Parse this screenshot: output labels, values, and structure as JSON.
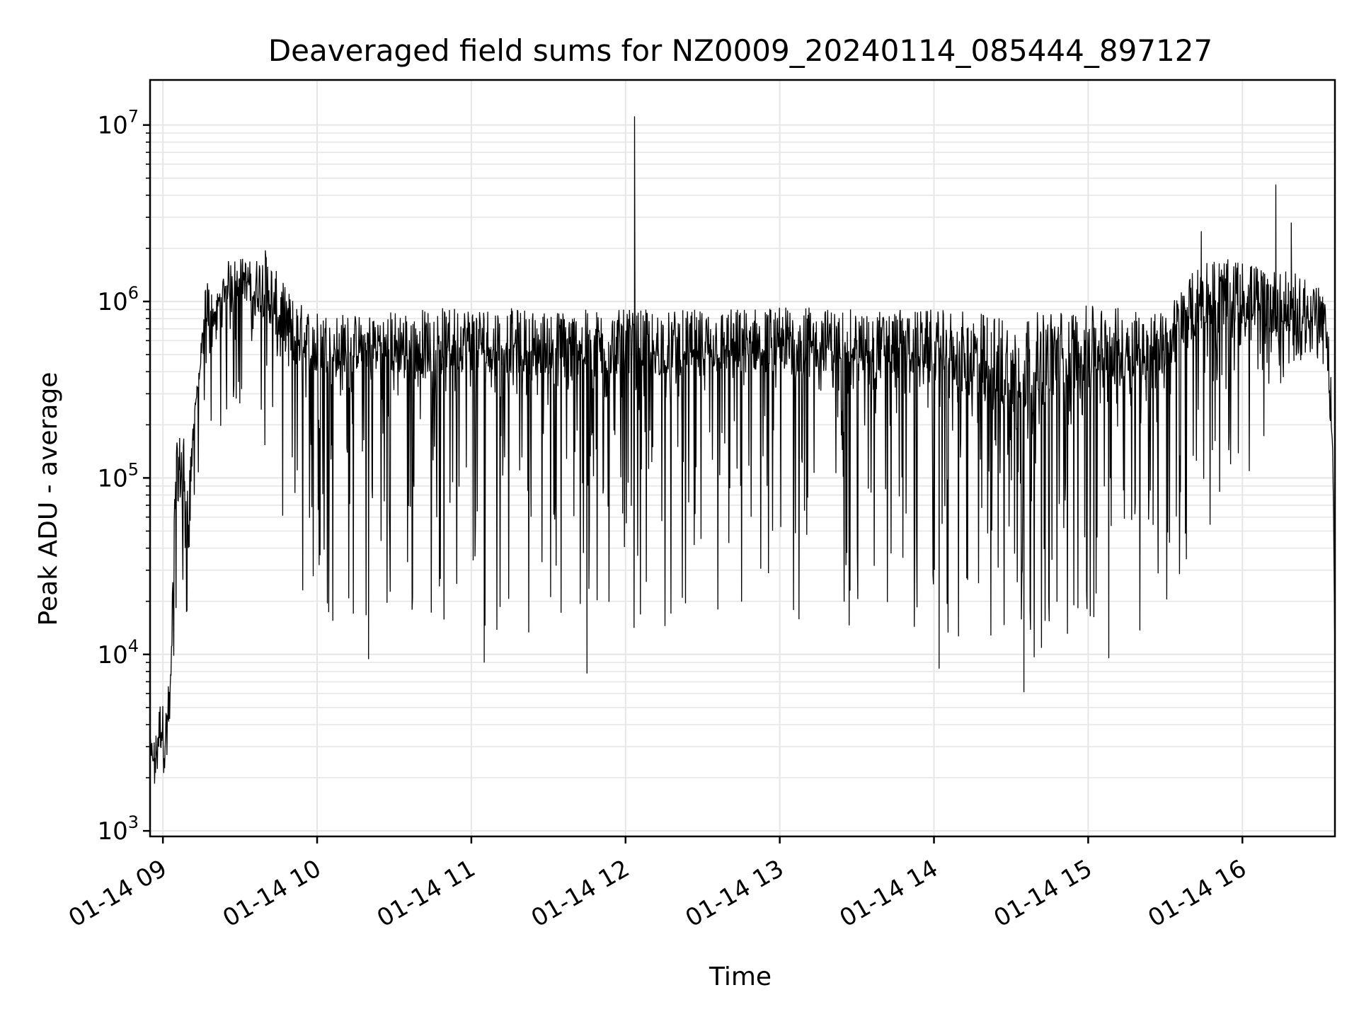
{
  "chart_data": {
    "type": "line",
    "title": "Deaveraged field sums for NZ0009_20240114_085444_897127",
    "xlabel": "Time",
    "ylabel": "Peak ADU - average",
    "yscale": "log",
    "ylim": [
      930,
      18000000
    ],
    "xlim": [
      "2024-01-14 08:55:00",
      "2024-01-14 16:36:00"
    ],
    "grid": true,
    "line_color": "#000000",
    "grid_color": "#e6e6e6",
    "y_ticks": [
      {
        "base": "10",
        "exp": "3",
        "value": 1000
      },
      {
        "base": "10",
        "exp": "4",
        "value": 10000
      },
      {
        "base": "10",
        "exp": "5",
        "value": 100000
      },
      {
        "base": "10",
        "exp": "6",
        "value": 1000000
      },
      {
        "base": "10",
        "exp": "7",
        "value": 10000000
      }
    ],
    "x_ticks": [
      {
        "label": "01-14 09",
        "time": "2024-01-14 09:00:00"
      },
      {
        "label": "01-14 10",
        "time": "2024-01-14 10:00:00"
      },
      {
        "label": "01-14 11",
        "time": "2024-01-14 11:00:00"
      },
      {
        "label": "01-14 12",
        "time": "2024-01-14 12:00:00"
      },
      {
        "label": "01-14 13",
        "time": "2024-01-14 13:00:00"
      },
      {
        "label": "01-14 14",
        "time": "2024-01-14 14:00:00"
      },
      {
        "label": "01-14 15",
        "time": "2024-01-14 15:00:00"
      },
      {
        "label": "01-14 16",
        "time": "2024-01-14 16:00:00"
      }
    ],
    "series": [
      {
        "x": [
          "2024-01-14 08:55:00",
          "2024-01-14 08:57:00",
          "2024-01-14 08:59:00",
          "2024-01-14 09:01:00",
          "2024-01-14 09:03:00",
          "2024-01-14 09:05:00",
          "2024-01-14 09:08:00",
          "2024-01-14 09:10:00",
          "2024-01-14 09:12:00",
          "2024-01-14 09:14:00",
          "2024-01-14 09:17:00",
          "2024-01-14 09:20:00",
          "2024-01-14 09:25:00",
          "2024-01-14 09:30:00",
          "2024-01-14 09:35:00",
          "2024-01-14 09:40:00",
          "2024-01-14 09:45:00",
          "2024-01-14 09:50:00",
          "2024-01-14 09:55:00",
          "2024-01-14 10:00:00",
          "2024-01-14 10:15:00",
          "2024-01-14 10:30:00",
          "2024-01-14 11:00:00",
          "2024-01-14 11:30:00",
          "2024-01-14 12:00:00",
          "2024-01-14 12:30:00",
          "2024-01-14 13:00:00",
          "2024-01-14 13:30:00",
          "2024-01-14 14:00:00",
          "2024-01-14 14:30:00",
          "2024-01-14 15:00:00",
          "2024-01-14 15:30:00",
          "2024-01-14 15:45:00",
          "2024-01-14 16:00:00",
          "2024-01-14 16:15:00",
          "2024-01-14 16:25:00",
          "2024-01-14 16:30:00",
          "2024-01-14 16:33:00",
          "2024-01-14 16:35:00",
          "2024-01-14 16:36:00"
        ],
        "upper": [
          3300,
          3400,
          5800,
          4800,
          9000,
          150000,
          220000,
          90000,
          250000,
          400000,
          1500000,
          1000000,
          1700000,
          1800000,
          1700000,
          2000000,
          1400000,
          1100000,
          950000,
          900000,
          850000,
          900000,
          950000,
          900000,
          900000,
          900000,
          950000,
          900000,
          900000,
          850000,
          950000,
          900000,
          1800000,
          1700000,
          1500000,
          1400000,
          1200000,
          900000,
          300000,
          10000
        ],
        "mid": [
          2500,
          2200,
          2800,
          2500,
          5500,
          80000,
          60000,
          40000,
          200000,
          350000,
          600000,
          700000,
          1000000,
          1100000,
          900000,
          800000,
          600000,
          450000,
          400000,
          380000,
          400000,
          380000,
          400000,
          380000,
          380000,
          380000,
          400000,
          400000,
          380000,
          200000,
          350000,
          380000,
          700000,
          750000,
          600000,
          650000,
          800000,
          500000,
          150000,
          9000
        ],
        "lower": [
          1700,
          1600,
          1900,
          1800,
          4500,
          10000,
          12000,
          18000,
          35000,
          60000,
          150000,
          120000,
          200000,
          250000,
          150000,
          120000,
          30000,
          20000,
          15000,
          14000,
          15000,
          15000,
          14000,
          13000,
          14000,
          14000,
          13000,
          14000,
          12000,
          9000,
          11000,
          15000,
          50000,
          80000,
          300000,
          400000,
          450000,
          300000,
          100000,
          8500
        ],
        "spikes": [
          {
            "time": "2024-01-14 12:03:30",
            "value": 11200000
          },
          {
            "time": "2024-01-14 16:13:00",
            "value": 4600000
          },
          {
            "time": "2024-01-14 16:19:00",
            "value": 2800000
          },
          {
            "time": "2024-01-14 15:44:00",
            "value": 2500000
          },
          {
            "time": "2024-01-14 11:45:00",
            "value": 7800
          },
          {
            "time": "2024-01-14 14:35:00",
            "value": 6100
          },
          {
            "time": "2024-01-14 10:20:00",
            "value": 9400
          },
          {
            "time": "2024-01-14 15:08:00",
            "value": 9500
          },
          {
            "time": "2024-01-14 14:02:00",
            "value": 8300
          },
          {
            "time": "2024-01-14 11:05:00",
            "value": 9000
          }
        ]
      }
    ]
  }
}
